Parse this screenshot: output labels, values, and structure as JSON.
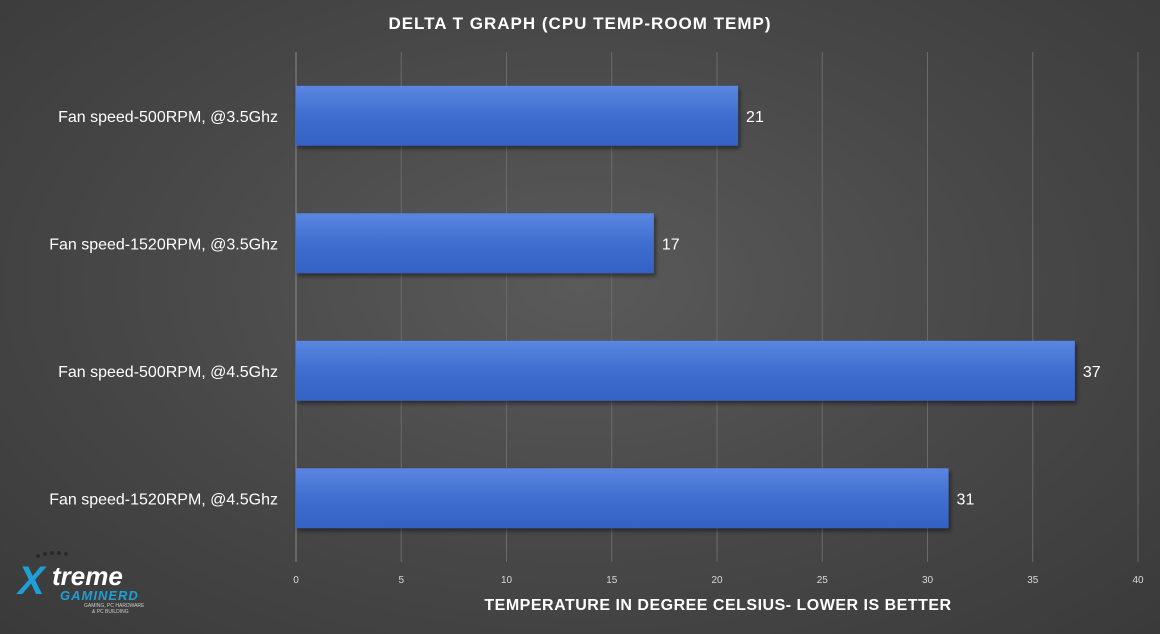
{
  "chart_data": {
    "type": "bar",
    "orientation": "horizontal",
    "title": "DELTA  T GRAPH (CPU TEMP-ROOM  TEMP)",
    "xlabel": "TEMPERATURE  IN DEGREE CELSIUS- LOWER IS BETTER",
    "ylabel": "",
    "categories": [
      "Fan speed-500RPM, @3.5Ghz",
      "Fan speed-1520RPM, @3.5Ghz",
      "Fan speed-500RPM, @4.5Ghz",
      "Fan speed-1520RPM, @4.5Ghz"
    ],
    "values": [
      21,
      17,
      37,
      31
    ],
    "xlim": [
      0,
      40
    ],
    "xticks": [
      0,
      5,
      10,
      15,
      20,
      25,
      30,
      35,
      40
    ],
    "grid": true,
    "bar_color": "#3f6fd1"
  },
  "logo": {
    "x_letter": "X",
    "main": "treme",
    "sub": "GAMINERD",
    "tag1": "GAMING, PC HARDWARE",
    "tag2": "& PC BUILDING"
  }
}
